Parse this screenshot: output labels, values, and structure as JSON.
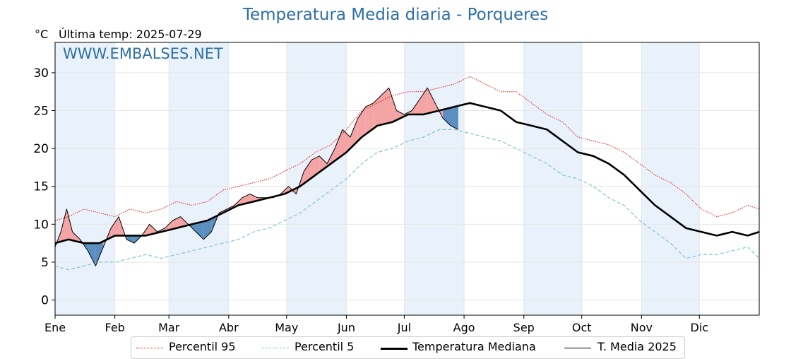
{
  "page": {
    "title": "Temperatura Media diaria - Porqueres",
    "unit_label": "°C",
    "last_temp_label": "Última temp: 2025-07-29",
    "watermark": "WWW.EMBALSES.NET"
  },
  "colors": {
    "title": "#2e6fa6",
    "p95": "#e31a1c",
    "p5": "#8cc5d6",
    "median": "#000000",
    "media2025": "#000000",
    "above_fill": "#f4a4a4",
    "below_fill": "#5a8fbf",
    "month_band": "#e9f2fb"
  },
  "chart_data": {
    "type": "line",
    "title": "Temperatura Media diaria - Porqueres",
    "xlabel": "",
    "ylabel": "°C",
    "x_domain": [
      1,
      366
    ],
    "ylim": [
      -2,
      34
    ],
    "yticks": [
      0,
      5,
      10,
      15,
      20,
      25,
      30
    ],
    "grid": true,
    "legend_position": "bottom",
    "months": [
      {
        "label": "Ene",
        "day": 1
      },
      {
        "label": "Feb",
        "day": 32
      },
      {
        "label": "Mar",
        "day": 60
      },
      {
        "label": "Abr",
        "day": 91
      },
      {
        "label": "May",
        "day": 121
      },
      {
        "label": "Jun",
        "day": 152
      },
      {
        "label": "Jul",
        "day": 182
      },
      {
        "label": "Ago",
        "day": 213
      },
      {
        "label": "Sep",
        "day": 244
      },
      {
        "label": "Oct",
        "day": 274
      },
      {
        "label": "Nov",
        "day": 305
      },
      {
        "label": "Dic",
        "day": 335
      }
    ],
    "series": [
      {
        "name": "Percentil 95",
        "style": "dotted",
        "x": [
          1,
          8,
          16,
          24,
          32,
          40,
          48,
          56,
          64,
          72,
          80,
          88,
          96,
          104,
          112,
          120,
          128,
          136,
          144,
          152,
          160,
          168,
          176,
          184,
          192,
          200,
          208,
          216,
          224,
          232,
          240,
          248,
          256,
          264,
          272,
          280,
          288,
          296,
          304,
          312,
          320,
          328,
          336,
          344,
          352,
          360,
          366
        ],
        "y": [
          10.5,
          11,
          12,
          11.5,
          11,
          12,
          11.5,
          12,
          13,
          12.5,
          13,
          14.5,
          15,
          15.5,
          16,
          17,
          18,
          19.5,
          20.5,
          22.5,
          25,
          26,
          27,
          27.5,
          27.5,
          28,
          28.5,
          29.5,
          28.5,
          27.5,
          27.5,
          26,
          24.5,
          23.5,
          21.5,
          21,
          20.5,
          19.5,
          18,
          16.5,
          15.5,
          14,
          12,
          11,
          11.5,
          12.5,
          12
        ]
      },
      {
        "name": "Percentil 5",
        "style": "dashed",
        "x": [
          1,
          8,
          16,
          24,
          32,
          40,
          48,
          56,
          64,
          72,
          80,
          88,
          96,
          104,
          112,
          120,
          128,
          136,
          144,
          152,
          160,
          168,
          176,
          184,
          192,
          200,
          208,
          216,
          224,
          232,
          240,
          248,
          256,
          264,
          272,
          280,
          288,
          296,
          304,
          312,
          320,
          328,
          336,
          344,
          352,
          360,
          366
        ],
        "y": [
          4.5,
          4,
          4.5,
          5,
          5,
          5.5,
          6,
          5.5,
          6,
          6.5,
          7,
          7.5,
          8,
          9,
          9.5,
          10.5,
          11.5,
          13,
          14.5,
          16,
          18,
          19.5,
          20,
          21,
          21.5,
          22.5,
          22.5,
          22,
          21.5,
          21,
          20,
          19,
          18,
          16.5,
          16,
          15,
          13.5,
          12.5,
          10.5,
          9,
          7.5,
          5.5,
          6,
          6,
          6.5,
          7,
          5.5
        ]
      },
      {
        "name": "Temperatura Mediana",
        "style": "bold",
        "x": [
          1,
          8,
          16,
          24,
          32,
          40,
          48,
          56,
          64,
          72,
          80,
          88,
          96,
          104,
          112,
          120,
          128,
          136,
          144,
          152,
          160,
          168,
          176,
          184,
          192,
          200,
          208,
          216,
          224,
          232,
          240,
          248,
          256,
          264,
          272,
          280,
          288,
          296,
          304,
          312,
          320,
          328,
          336,
          344,
          352,
          360,
          366
        ],
        "y": [
          7.5,
          8,
          7.5,
          7.5,
          8.5,
          8.5,
          8.5,
          9,
          9.5,
          10,
          10.5,
          11.5,
          12.5,
          13,
          13.5,
          14,
          15,
          16.5,
          18,
          19.5,
          21.5,
          23,
          23.5,
          24.5,
          24.5,
          25,
          25.5,
          26,
          25.5,
          25,
          23.5,
          23,
          22.5,
          21,
          19.5,
          19,
          18,
          16.5,
          14.5,
          12.5,
          11,
          9.5,
          9,
          8.5,
          9,
          8.5,
          9
        ]
      },
      {
        "name": "T. Media 2025",
        "style": "thin",
        "x": [
          1,
          4,
          7,
          10,
          14,
          18,
          22,
          26,
          30,
          34,
          38,
          42,
          46,
          50,
          54,
          58,
          62,
          66,
          70,
          74,
          78,
          82,
          86,
          90,
          94,
          98,
          102,
          106,
          110,
          114,
          118,
          122,
          126,
          130,
          134,
          138,
          142,
          146,
          150,
          154,
          158,
          162,
          166,
          170,
          174,
          178,
          182,
          186,
          190,
          194,
          198,
          202,
          206,
          210
        ],
        "y": [
          7,
          9,
          12,
          9,
          8,
          6.5,
          4.5,
          7,
          9.5,
          11,
          8,
          7.5,
          8.5,
          10,
          9,
          9.5,
          10.5,
          11,
          10,
          9,
          8,
          9,
          11.5,
          12,
          12.5,
          13.5,
          14,
          13.5,
          13.5,
          13.5,
          14,
          15,
          14,
          17,
          18.5,
          19,
          18,
          20,
          22.5,
          21.5,
          24,
          25.5,
          26,
          27,
          28,
          25,
          24.5,
          25,
          26.5,
          28,
          26,
          24,
          23,
          22.5
        ]
      }
    ]
  },
  "legend": {
    "items": [
      {
        "label": "Percentil 95"
      },
      {
        "label": "Percentil 5"
      },
      {
        "label": "Temperatura Mediana"
      },
      {
        "label": "T. Media 2025"
      }
    ]
  }
}
